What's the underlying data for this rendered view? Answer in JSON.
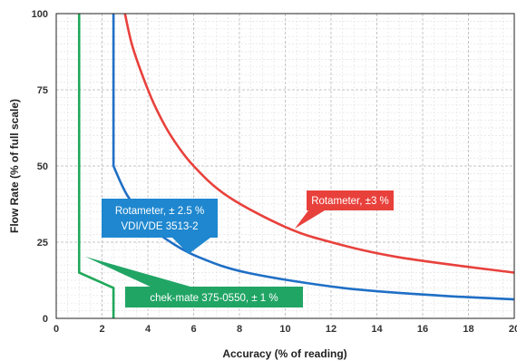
{
  "chart_data": {
    "type": "line",
    "xlabel": "Accuracy (% of reading)",
    "ylabel": "Flow Rate (% of full scale)",
    "xlim": [
      0,
      20
    ],
    "ylim": [
      0,
      100
    ],
    "x_ticks": [
      "0",
      "2",
      "4",
      "6",
      "8",
      "10",
      "12",
      "14",
      "16",
      "18",
      "20"
    ],
    "y_ticks": [
      "0",
      "25",
      "50",
      "75",
      "100"
    ],
    "grid": true,
    "series": [
      {
        "name": "Rotameter, ±3 %",
        "color": "#e8413c",
        "points": [
          [
            3.0,
            100
          ],
          [
            3.3,
            90
          ],
          [
            3.75,
            80
          ],
          [
            4.29,
            70
          ],
          [
            5.0,
            60
          ],
          [
            6.0,
            50
          ],
          [
            7.5,
            40
          ],
          [
            10.0,
            30
          ],
          [
            12.0,
            25
          ],
          [
            15.0,
            20
          ],
          [
            20.0,
            15
          ]
        ]
      },
      {
        "name": "Rotameter, ± 2.5 % VDI/VDE 3513-2",
        "color": "#1f6fc5",
        "points": [
          [
            2.5,
            100
          ],
          [
            2.5,
            50
          ],
          [
            3.13,
            40
          ],
          [
            4.17,
            30
          ],
          [
            5.0,
            25
          ],
          [
            6.25,
            20
          ],
          [
            8.33,
            15
          ],
          [
            12.5,
            10
          ],
          [
            16.7,
            7.5
          ],
          [
            20.0,
            6.25
          ]
        ]
      },
      {
        "name": "chek-mate 375-0550, ± 1 %",
        "color": "#1fa85a",
        "points": [
          [
            1.0,
            100
          ],
          [
            1.0,
            15
          ],
          [
            2.5,
            10
          ],
          [
            2.5,
            0
          ]
        ]
      }
    ],
    "annotations": [
      {
        "series": 0,
        "line1": "Rotameter, ±3 %",
        "line2": "",
        "color": "#e8413c"
      },
      {
        "series": 1,
        "line1": "Rotameter, ± 2.5 %",
        "line2": "VDI/VDE 3513-2",
        "color": "#1f87cf"
      },
      {
        "series": 2,
        "line1": "chek-mate 375-0550, ± 1 %",
        "line2": "",
        "color": "#21a565"
      }
    ]
  }
}
